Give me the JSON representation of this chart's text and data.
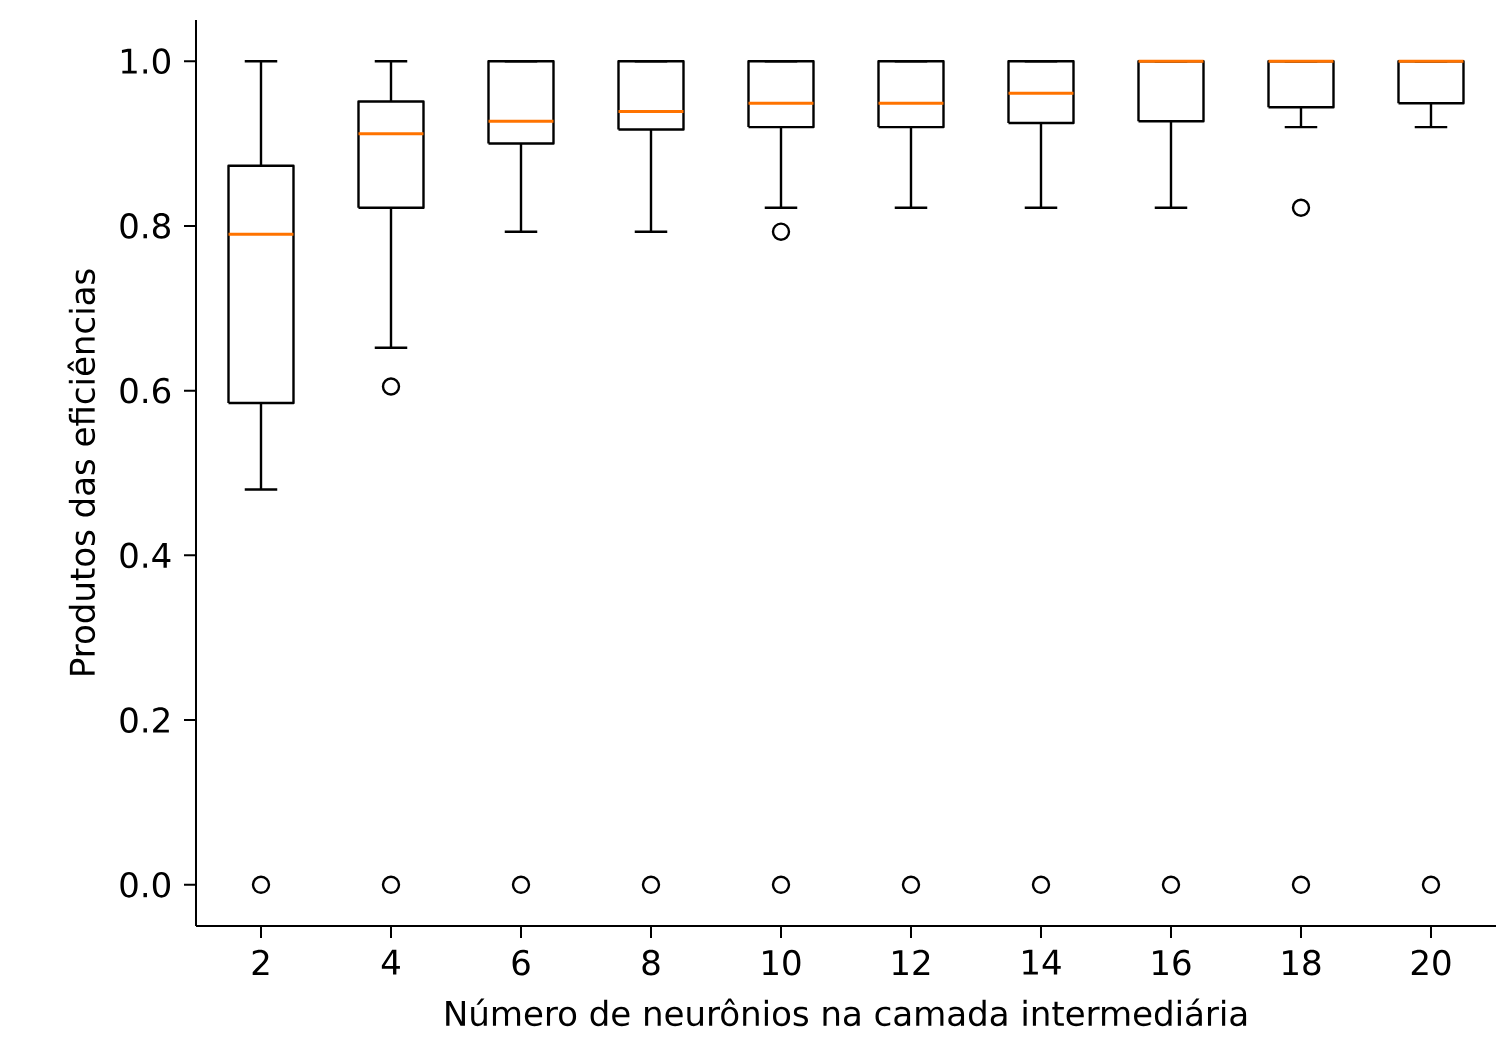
{
  "chart_data": {
    "type": "box",
    "xlabel": "Número de neurônios na camada intermediária",
    "ylabel": "Produtos das eficiências",
    "categories": [
      "2",
      "4",
      "6",
      "8",
      "10",
      "12",
      "14",
      "16",
      "18",
      "20"
    ],
    "ylim": [
      -0.05,
      1.05
    ],
    "yticks": [
      {
        "value": 0,
        "label": "0.0"
      },
      0.2,
      0.4,
      0.6,
      0.8,
      {
        "value": 1,
        "label": "1.0"
      }
    ],
    "grid": false,
    "marker": "circle",
    "series": [
      {
        "color": "#000000",
        "boxes": [
          {
            "low": 0.48,
            "q1": 0.585,
            "median": 0.79,
            "q3": 0.873,
            "high": 1.0,
            "outliers": [
              0.0
            ]
          },
          {
            "low": 0.652,
            "q1": 0.822,
            "median": 0.912,
            "q3": 0.951,
            "high": 1.0,
            "outliers": [
              0.605,
              0.0
            ]
          },
          {
            "low": 0.793,
            "q1": 0.9,
            "median": 0.927,
            "q3": 1.0,
            "high": 1.0,
            "outliers": [
              0.0
            ]
          },
          {
            "low": 0.793,
            "q1": 0.917,
            "median": 0.939,
            "q3": 1.0,
            "high": 1.0,
            "outliers": [
              0.0
            ]
          },
          {
            "low": 0.822,
            "q1": 0.92,
            "median": 0.949,
            "q3": 1.0,
            "high": 1.0,
            "outliers": [
              0.793,
              0.0
            ]
          },
          {
            "low": 0.822,
            "q1": 0.92,
            "median": 0.949,
            "q3": 1.0,
            "high": 1.0,
            "outliers": [
              0.0
            ]
          },
          {
            "low": 0.822,
            "q1": 0.925,
            "median": 0.961,
            "q3": 1.0,
            "high": 1.0,
            "outliers": [
              0.0
            ]
          },
          {
            "low": 0.822,
            "q1": 0.927,
            "median": 1.0,
            "q3": 1.0,
            "high": 1.0,
            "outliers": [
              0.0
            ]
          },
          {
            "low": 0.92,
            "q1": 0.944,
            "median": 1.0,
            "q3": 1.0,
            "high": 1.0,
            "outliers": [
              0.822,
              0.0
            ]
          },
          {
            "low": 0.92,
            "q1": 0.949,
            "median": 1.0,
            "q3": 1.0,
            "high": 1.0,
            "outliers": [
              0.0
            ]
          }
        ]
      }
    ]
  }
}
